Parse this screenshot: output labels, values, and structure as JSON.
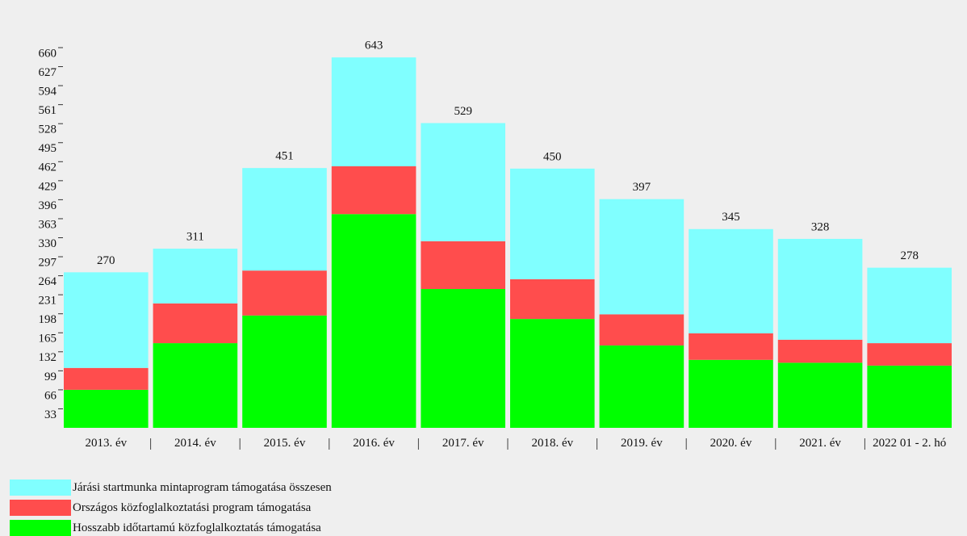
{
  "chart_data": {
    "type": "stacked-bar",
    "categories": [
      "2013. év",
      "2014. év",
      "2015. év",
      "2016. év",
      "2017. év",
      "2018. év",
      "2019. év",
      "2020. év",
      "2021. év",
      "2022 01 - 2. hó"
    ],
    "series": [
      {
        "name": "Hosszabb időtartamú közfoglalkoztatás támogatása",
        "color": "#00ff00",
        "values": [
          66,
          147,
          195,
          371,
          241,
          189,
          143,
          118,
          113,
          108
        ]
      },
      {
        "name": "Országos közfoglalkoztatási program támogatása",
        "color": "#ff4d4d",
        "values": [
          38,
          69,
          78,
          83,
          83,
          69,
          54,
          46,
          40,
          39
        ]
      },
      {
        "name": "Járási startmunka mintaprogram támogatása összesen",
        "color": "#80ffff",
        "values": [
          166,
          95,
          178,
          189,
          205,
          192,
          200,
          181,
          175,
          131
        ]
      }
    ],
    "totals": [
      270,
      311,
      451,
      643,
      529,
      450,
      397,
      345,
      328,
      278
    ],
    "ylim": [
      0,
      660
    ],
    "yticks": [
      33,
      66,
      99,
      132,
      165,
      198,
      231,
      264,
      297,
      330,
      363,
      396,
      429,
      462,
      495,
      528,
      561,
      594,
      627,
      660
    ]
  }
}
